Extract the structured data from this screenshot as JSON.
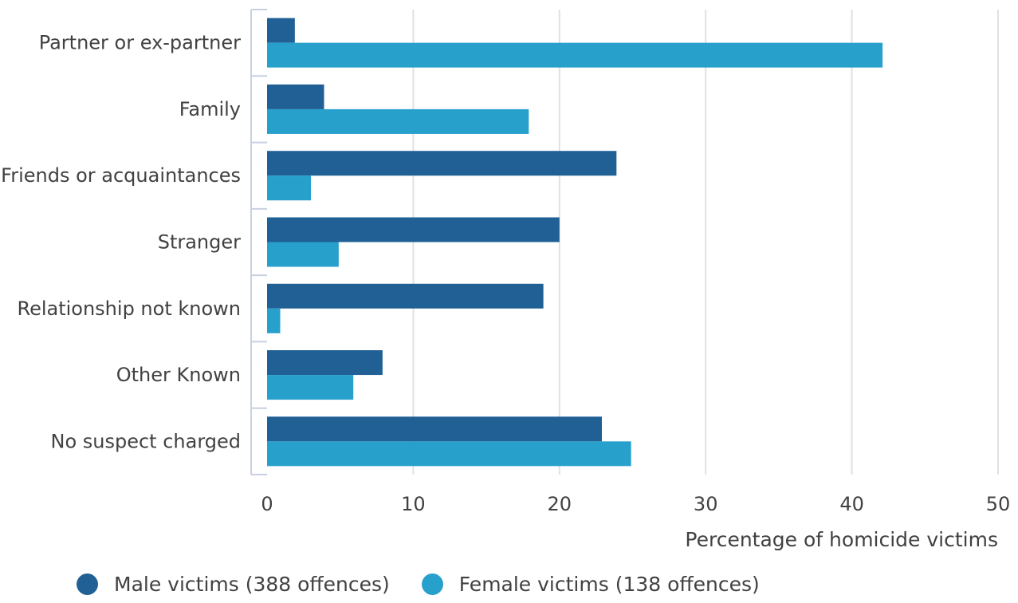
{
  "chart_data": {
    "type": "bar",
    "orientation": "horizontal",
    "categories": [
      "Partner or ex-partner",
      "Family",
      "Friends or acquaintances",
      "Stranger",
      "Relationship not known",
      "Other Known",
      "No suspect charged"
    ],
    "series": [
      {
        "name": "Male victims (388 offences)",
        "color": "#206095",
        "values": [
          1.9,
          3.9,
          23.9,
          20.0,
          18.9,
          7.9,
          22.9
        ]
      },
      {
        "name": "Female victims (138 offences)",
        "color": "#27a0cc",
        "values": [
          42.1,
          17.9,
          3.0,
          4.9,
          0.9,
          5.9,
          24.9
        ]
      }
    ],
    "xlim": [
      0,
      50
    ],
    "xticks": [
      "0",
      "10",
      "20",
      "30",
      "40",
      "50"
    ],
    "xlabel": "Percentage of homicide victims",
    "ylabel": "",
    "title": "",
    "grid": "vertical",
    "legend_position": "bottom-left"
  }
}
